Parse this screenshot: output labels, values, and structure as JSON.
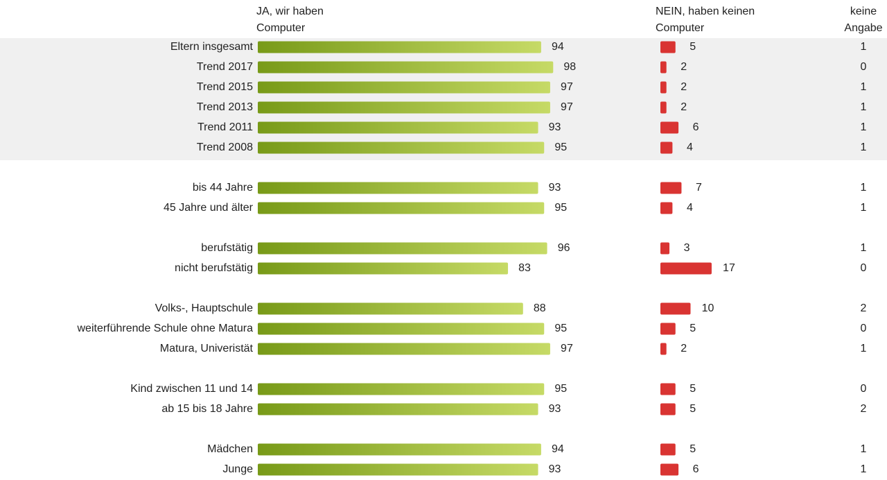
{
  "chart_data": {
    "type": "bar",
    "series": [
      {
        "name": "JA, wir haben Computer",
        "color": "#c6da66",
        "color_start": "#789a18"
      },
      {
        "name": "NEIN, haben keinen Computer",
        "color": "#d93432"
      },
      {
        "name": "keine Angabe"
      }
    ],
    "groups": [
      {
        "shaded": true,
        "categories": [
          "Eltern insgesamt",
          "Trend 2017",
          "Trend 2015",
          "Trend 2013",
          "Trend 2011",
          "Trend 2008"
        ],
        "values": [
          [
            94,
            98,
            97,
            97,
            93,
            95
          ],
          [
            5,
            2,
            2,
            2,
            6,
            4
          ],
          [
            1,
            0,
            1,
            1,
            1,
            1
          ]
        ]
      },
      {
        "categories": [
          "bis 44 Jahre",
          "45 Jahre und älter"
        ],
        "values": [
          [
            93,
            95
          ],
          [
            7,
            4
          ],
          [
            1,
            1
          ]
        ]
      },
      {
        "categories": [
          "berufstätig",
          "nicht berufstätig"
        ],
        "values": [
          [
            96,
            83
          ],
          [
            3,
            17
          ],
          [
            1,
            0
          ]
        ]
      },
      {
        "categories": [
          "Volks-, Hauptschule",
          "weiterführende Schule ohne Matura",
          "Matura, Univeristät"
        ],
        "values": [
          [
            88,
            95,
            97
          ],
          [
            10,
            5,
            2
          ],
          [
            2,
            0,
            1
          ]
        ]
      },
      {
        "categories": [
          "Kind zwischen 11 und 14",
          "ab 15 bis 18 Jahre"
        ],
        "values": [
          [
            95,
            93
          ],
          [
            5,
            5
          ],
          [
            0,
            2
          ]
        ]
      },
      {
        "categories": [
          "Mädchen",
          "Junge"
        ],
        "values": [
          [
            94,
            93
          ],
          [
            5,
            6
          ],
          [
            1,
            1
          ]
        ]
      }
    ]
  }
}
